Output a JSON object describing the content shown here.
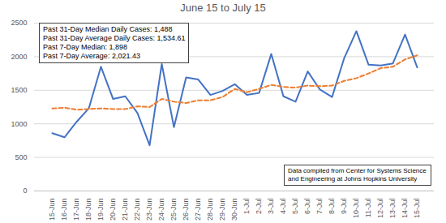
{
  "chart_data": {
    "type": "line",
    "title": "June 15 to July 15",
    "annotations": [
      "Past 31-Day Median Daily Cases: 1,488",
      "Past 31-Day Average Daily Cases: 1,534.61",
      "Past 7-Day Median: 1,898",
      "Past 7-Day Average: 2,021.43"
    ],
    "caption": "Data compiled from Center for Systems Science and Engineering at Johns Hopkins University",
    "categories": [
      "15-Jun",
      "16-Jun",
      "17-Jun",
      "18-Jun",
      "19-Jun",
      "20-Jun",
      "21-Jun",
      "22-Jun",
      "23-Jun",
      "24-Jun",
      "25-Jun",
      "26-Jun",
      "27-Jun",
      "28-Jun",
      "29-Jun",
      "30-Jun",
      "1-Jul",
      "2-Jul",
      "3-Jul",
      "4-Jul",
      "5-Jul",
      "6-Jul",
      "7-Jul",
      "8-Jul",
      "9-Jul",
      "10-Jul",
      "11-Jul",
      "12-Jul",
      "13-Jul",
      "14-Jul",
      "15-Jul"
    ],
    "series": [
      {
        "color": "#4472c4",
        "line_style": "solid",
        "values": [
          860,
          800,
          1030,
          1230,
          1850,
          1370,
          1410,
          1160,
          680,
          1890,
          950,
          1690,
          1660,
          1430,
          1490,
          1590,
          1430,
          1460,
          2040,
          1410,
          1330,
          1780,
          1510,
          1400,
          1980,
          2380,
          1880,
          1870,
          1900,
          2330,
          1840
        ]
      },
      {
        "color": "#ed7d31",
        "line_style": "dashed",
        "values": [
          1230,
          1240,
          1210,
          1220,
          1230,
          1220,
          1220,
          1260,
          1250,
          1370,
          1330,
          1310,
          1350,
          1350,
          1400,
          1520,
          1470,
          1520,
          1580,
          1550,
          1540,
          1570,
          1560,
          1570,
          1640,
          1680,
          1750,
          1830,
          1850,
          1960,
          2020
        ]
      }
    ],
    "ylim": [
      0,
      2500
    ],
    "yticks": [
      0,
      500,
      1000,
      1500,
      2000,
      2500
    ],
    "grid": true
  }
}
